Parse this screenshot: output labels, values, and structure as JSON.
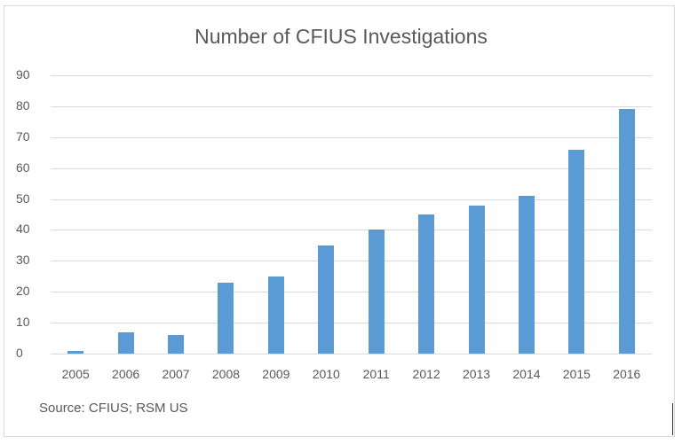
{
  "chart_data": {
    "type": "bar",
    "title": "Number of CFIUS Investigations",
    "categories": [
      "2005",
      "2006",
      "2007",
      "2008",
      "2009",
      "2010",
      "2011",
      "2012",
      "2013",
      "2014",
      "2015",
      "2016"
    ],
    "values": [
      1,
      7,
      6,
      23,
      25,
      35,
      40,
      45,
      48,
      51,
      66,
      79
    ],
    "xlabel": "",
    "ylabel": "",
    "ylim": [
      0,
      90
    ],
    "yticks": [
      "0",
      "10",
      "20",
      "30",
      "40",
      "50",
      "60",
      "70",
      "80",
      "90"
    ],
    "grid": true,
    "legend": null,
    "bar_color": "#5b9bd5",
    "annotation": "Source: CFIUS; RSM US"
  }
}
